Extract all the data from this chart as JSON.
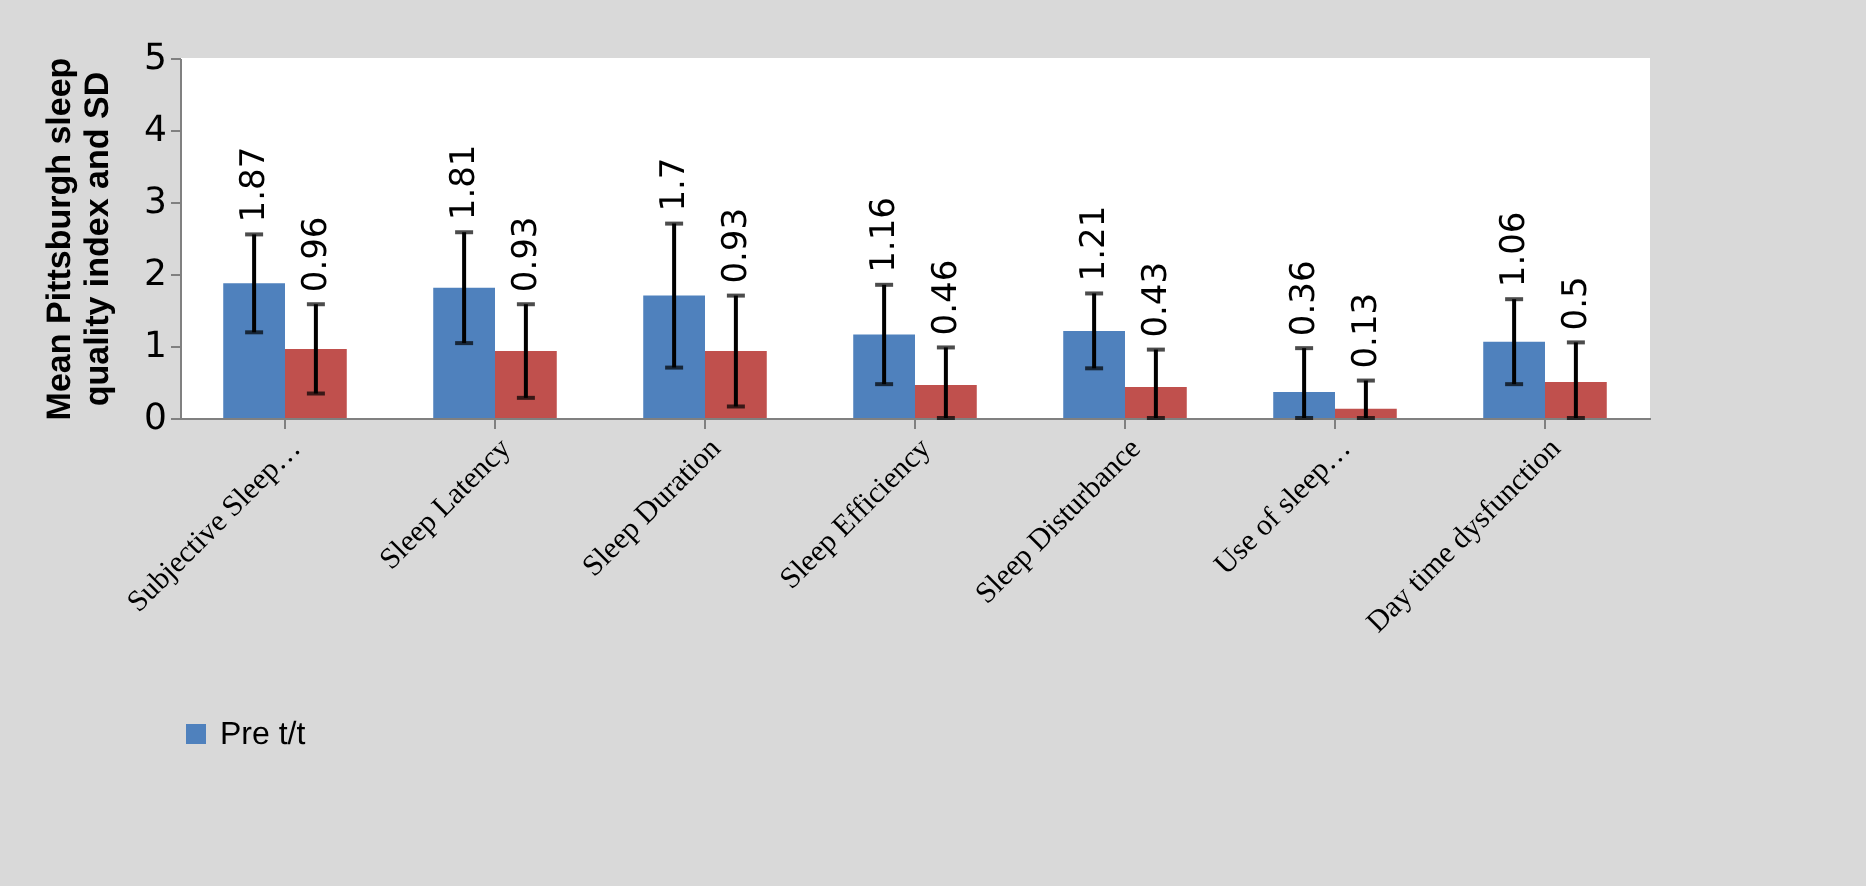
{
  "chart_data": {
    "type": "bar",
    "ylabel": "Mean Pittsburgh sleep\nquality index  and SD",
    "categories": [
      "Subjective Sleep…",
      "Sleep Latency",
      "Sleep Duration",
      "Sleep Efficiency",
      "Sleep Disturbance",
      "Use of sleep…",
      "Day time dysfunction"
    ],
    "series": [
      {
        "name": "Pre t/t",
        "color": "#4f81bd",
        "values": [
          1.87,
          1.81,
          1.7,
          1.16,
          1.21,
          0.36,
          1.06
        ],
        "errors": [
          0.68,
          0.77,
          1.0,
          0.69,
          0.52,
          [
            0,
            0.97
          ],
          0.59
        ]
      },
      {
        "color": "#c0504d",
        "values": [
          0.96,
          0.93,
          0.93,
          0.46,
          0.43,
          0.13,
          0.5
        ],
        "errors": [
          0.62,
          0.65,
          0.77,
          [
            0,
            0.98
          ],
          [
            0,
            0.95
          ],
          [
            0,
            0.52
          ],
          [
            0,
            1.05
          ]
        ]
      }
    ],
    "ylim": [
      0,
      5
    ],
    "yticks": [
      0,
      1,
      2,
      3,
      4,
      5
    ],
    "grid": false,
    "legend": "bottom",
    "data_labels": true
  }
}
